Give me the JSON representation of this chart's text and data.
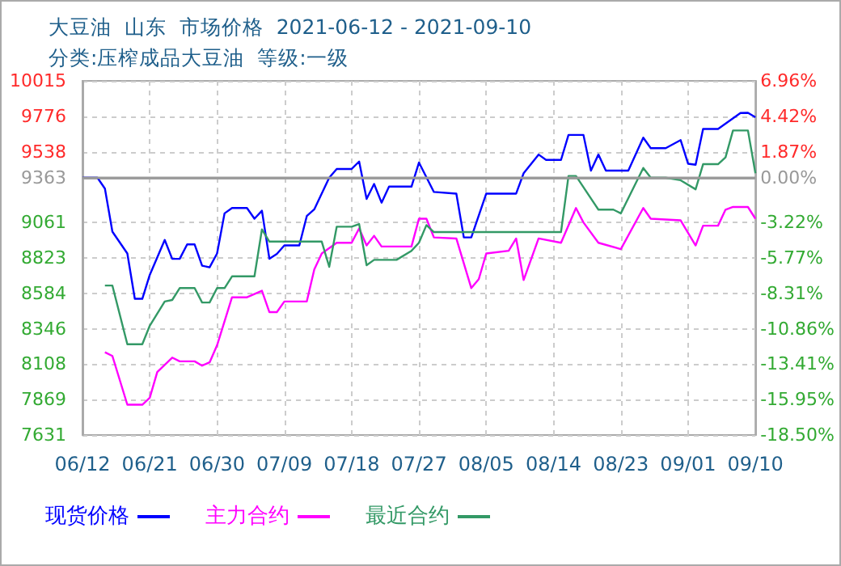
{
  "chart_data": {
    "type": "line",
    "title": "大豆油  山东  市场价格  2021-06-12 - 2021-09-10",
    "subtitle": "分类:压榨成品大豆油  等级:一级",
    "xlim": [
      "2021-06-12",
      "2021-09-10"
    ],
    "xticks": [
      {
        "value": "2021-06-12",
        "label": "06/12"
      },
      {
        "value": "2021-06-21",
        "label": "06/21"
      },
      {
        "value": "2021-06-30",
        "label": "06/30"
      },
      {
        "value": "2021-07-09",
        "label": "07/09"
      },
      {
        "value": "2021-07-18",
        "label": "07/18"
      },
      {
        "value": "2021-07-27",
        "label": "07/27"
      },
      {
        "value": "2021-08-05",
        "label": "08/05"
      },
      {
        "value": "2021-08-14",
        "label": "08/14"
      },
      {
        "value": "2021-08-23",
        "label": "08/23"
      },
      {
        "value": "2021-09-01",
        "label": "09/01"
      },
      {
        "value": "2021-09-10",
        "label": "09/10"
      }
    ],
    "ylim": [
      7631,
      10015
    ],
    "yticks": [
      10015,
      9776,
      9538,
      9363,
      9061,
      8823,
      8584,
      8346,
      8108,
      7869,
      7631
    ],
    "y2lim": [
      -18.5,
      6.96
    ],
    "y2ticks": [
      {
        "value": 6.96,
        "label": "6.96%"
      },
      {
        "value": 4.42,
        "label": "4.42%"
      },
      {
        "value": 1.87,
        "label": "1.87%"
      },
      {
        "value": 0,
        "label": "0.00%"
      },
      {
        "value": -3.22,
        "label": "-3.22%"
      },
      {
        "value": -5.77,
        "label": "-5.77%"
      },
      {
        "value": -8.31,
        "label": "-8.31%"
      },
      {
        "value": -10.86,
        "label": "-10.86%"
      },
      {
        "value": -13.41,
        "label": "-13.41%"
      },
      {
        "value": -15.95,
        "label": "-15.95%"
      },
      {
        "value": -18.5,
        "label": "-18.50%"
      }
    ],
    "ref_lines": [
      {
        "axis": "y",
        "value": 9363,
        "color": "#999999"
      }
    ],
    "grid": true,
    "legend": "bottom left",
    "series": [
      {
        "name": "现货价格",
        "color": "#0000ff",
        "x": [
          "2021-06-12",
          "2021-06-14",
          "2021-06-15",
          "2021-06-16",
          "2021-06-18",
          "2021-06-19",
          "2021-06-20",
          "2021-06-21",
          "2021-06-23",
          "2021-06-24",
          "2021-06-25",
          "2021-06-26",
          "2021-06-27",
          "2021-06-28",
          "2021-06-29",
          "2021-06-30",
          "2021-07-01",
          "2021-07-02",
          "2021-07-04",
          "2021-07-05",
          "2021-07-06",
          "2021-07-07",
          "2021-07-08",
          "2021-07-09",
          "2021-07-11",
          "2021-07-12",
          "2021-07-13",
          "2021-07-15",
          "2021-07-16",
          "2021-07-18",
          "2021-07-19",
          "2021-07-20",
          "2021-07-21",
          "2021-07-22",
          "2021-07-23",
          "2021-07-26",
          "2021-07-27",
          "2021-07-29",
          "2021-08-01",
          "2021-08-02",
          "2021-08-03",
          "2021-08-05",
          "2021-08-09",
          "2021-08-10",
          "2021-08-12",
          "2021-08-13",
          "2021-08-15",
          "2021-08-16",
          "2021-08-18",
          "2021-08-19",
          "2021-08-20",
          "2021-08-21",
          "2021-08-24",
          "2021-08-26",
          "2021-08-27",
          "2021-08-29",
          "2021-08-31",
          "2021-09-01",
          "2021-09-02",
          "2021-09-03",
          "2021-09-05",
          "2021-09-08",
          "2021-09-09",
          "2021-09-10"
        ],
        "values": [
          9363,
          9363,
          9290,
          9000,
          8853,
          8548,
          8548,
          8709,
          8944,
          8817,
          8817,
          8914,
          8914,
          8771,
          8760,
          8853,
          9123,
          9159,
          9159,
          9087,
          9141,
          8817,
          8850,
          8907,
          8907,
          9105,
          9150,
          9363,
          9422,
          9422,
          9472,
          9220,
          9321,
          9195,
          9303,
          9303,
          9465,
          9267,
          9256,
          8961,
          8961,
          9256,
          9256,
          9393,
          9519,
          9483,
          9483,
          9651,
          9651,
          9411,
          9519,
          9411,
          9411,
          9633,
          9562,
          9562,
          9616,
          9457,
          9450,
          9691,
          9691,
          9799,
          9800,
          9770
        ]
      },
      {
        "name": "主力合约",
        "color": "#ff00ff",
        "x": [
          "2021-06-15",
          "2021-06-16",
          "2021-06-18",
          "2021-06-20",
          "2021-06-21",
          "2021-06-22",
          "2021-06-24",
          "2021-06-25",
          "2021-06-27",
          "2021-06-28",
          "2021-06-29",
          "2021-06-30",
          "2021-07-02",
          "2021-07-04",
          "2021-07-06",
          "2021-07-07",
          "2021-07-08",
          "2021-07-09",
          "2021-07-12",
          "2021-07-13",
          "2021-07-14",
          "2021-07-16",
          "2021-07-18",
          "2021-07-19",
          "2021-07-20",
          "2021-07-21",
          "2021-07-22",
          "2021-07-26",
          "2021-07-27",
          "2021-07-28",
          "2021-07-29",
          "2021-08-01",
          "2021-08-03",
          "2021-08-04",
          "2021-08-05",
          "2021-08-08",
          "2021-08-09",
          "2021-08-10",
          "2021-08-12",
          "2021-08-15",
          "2021-08-17",
          "2021-08-18",
          "2021-08-20",
          "2021-08-23",
          "2021-08-26",
          "2021-08-27",
          "2021-08-31",
          "2021-09-02",
          "2021-09-03",
          "2021-09-05",
          "2021-09-06",
          "2021-09-07",
          "2021-09-09",
          "2021-09-10"
        ],
        "values": [
          8188,
          8163,
          7835,
          7835,
          7882,
          8055,
          8152,
          8127,
          8127,
          8098,
          8120,
          8235,
          8558,
          8558,
          8602,
          8458,
          8458,
          8530,
          8530,
          8745,
          8853,
          8925,
          8925,
          9022,
          8907,
          8972,
          8900,
          8900,
          9087,
          9087,
          8961,
          8954,
          8620,
          8680,
          8853,
          8871,
          8954,
          8674,
          8954,
          8925,
          9159,
          9062,
          8925,
          8882,
          9159,
          9087,
          9076,
          8907,
          9040,
          9040,
          9148,
          9166,
          9166,
          9087
        ]
      },
      {
        "name": "最近合约",
        "color": "#339966",
        "x": [
          "2021-06-15",
          "2021-06-16",
          "2021-06-18",
          "2021-06-20",
          "2021-06-21",
          "2021-06-23",
          "2021-06-24",
          "2021-06-25",
          "2021-06-27",
          "2021-06-28",
          "2021-06-29",
          "2021-06-30",
          "2021-07-01",
          "2021-07-02",
          "2021-07-05",
          "2021-07-06",
          "2021-07-07",
          "2021-07-14",
          "2021-07-15",
          "2021-07-16",
          "2021-07-18",
          "2021-07-19",
          "2021-07-20",
          "2021-07-21",
          "2021-07-24",
          "2021-07-26",
          "2021-07-27",
          "2021-07-28",
          "2021-07-29",
          "2021-08-15",
          "2021-08-16",
          "2021-08-17",
          "2021-08-20",
          "2021-08-22",
          "2021-08-23",
          "2021-08-26",
          "2021-08-27",
          "2021-08-29",
          "2021-08-31",
          "2021-09-02",
          "2021-09-03",
          "2021-09-05",
          "2021-09-06",
          "2021-09-07",
          "2021-09-09",
          "2021-09-10"
        ],
        "values": [
          8637,
          8637,
          8242,
          8242,
          8367,
          8530,
          8540,
          8620,
          8620,
          8523,
          8523,
          8620,
          8620,
          8699,
          8699,
          9015,
          8933,
          8933,
          8763,
          9033,
          9033,
          9051,
          8774,
          8810,
          8810,
          8871,
          8925,
          9044,
          8997,
          8997,
          9375,
          9375,
          9148,
          9148,
          9123,
          9429,
          9363,
          9363,
          9346,
          9285,
          9454,
          9454,
          9500,
          9681,
          9681,
          9393
        ]
      }
    ]
  }
}
